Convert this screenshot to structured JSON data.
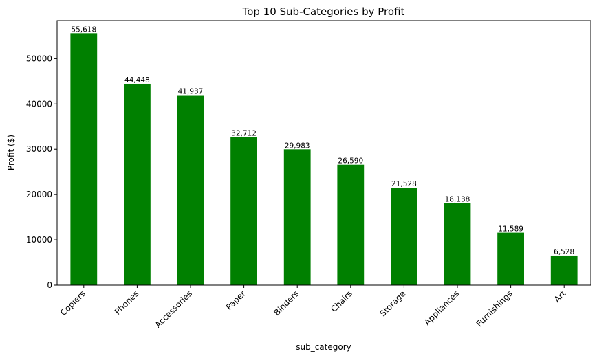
{
  "chart_data": {
    "type": "bar",
    "title": "Top 10 Sub-Categories by Profit",
    "xlabel": "sub_category",
    "ylabel": "Profit ($)",
    "categories": [
      "Copiers",
      "Phones",
      "Accessories",
      "Paper",
      "Binders",
      "Chairs",
      "Storage",
      "Appliances",
      "Furnishings",
      "Art"
    ],
    "values": [
      55618,
      44448,
      41937,
      32712,
      29983,
      26590,
      21528,
      18138,
      11589,
      6528
    ],
    "value_labels": [
      "55,618",
      "44,448",
      "41,937",
      "32,712",
      "29,983",
      "26,590",
      "21,528",
      "18,138",
      "11,589",
      "6,528"
    ],
    "yticks": [
      0,
      10000,
      20000,
      30000,
      40000,
      50000
    ],
    "ytick_labels": [
      "0",
      "10000",
      "20000",
      "30000",
      "40000",
      "50000"
    ],
    "ylim": [
      0,
      58400
    ],
    "bar_color": "#008000",
    "grid": false,
    "legend": "none"
  }
}
